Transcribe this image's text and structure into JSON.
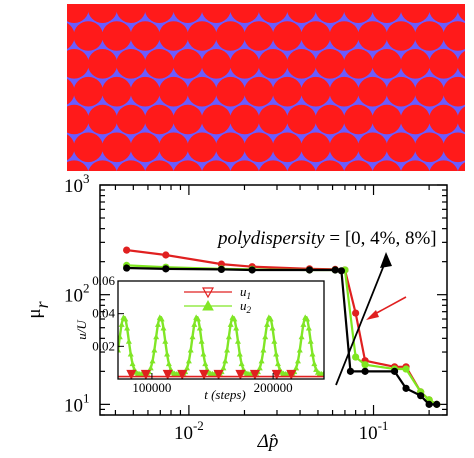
{
  "colors": {
    "particle": "#ff1a1a",
    "background_fluid": "#6a5cff",
    "series_0": "#000000",
    "series_4": "#7fe620",
    "series_8": "#e02020",
    "arrow_red": "#e02020",
    "inset_u1": "#e02020",
    "inset_u2": "#80e626"
  },
  "particles": {
    "rows": 6,
    "per_row": 14
  },
  "annotation": {
    "prefix": "polydispersity",
    "suffix": " = [0, 4%, 8%]"
  },
  "chart_data": [
    {
      "type": "line",
      "xlabel": "Δp̂",
      "ylabel": "μ",
      "ylabel_sub": "r",
      "xscale": "log",
      "yscale": "log",
      "xlim": [
        0.0033,
        0.25
      ],
      "ylim": [
        8,
        1000
      ],
      "x_ticks": [
        0.01,
        0.1
      ],
      "x_tick_labels": [
        "10",
        "10"
      ],
      "x_tick_exps": [
        "-2",
        "-1"
      ],
      "y_ticks": [
        10,
        100,
        1000
      ],
      "y_tick_labels": [
        "10",
        "10",
        "10"
      ],
      "y_tick_exps": [
        "1",
        "2",
        "3"
      ],
      "series": [
        {
          "color_key": "series_8",
          "x": [
            0.0046,
            0.0075,
            0.015,
            0.022,
            0.045,
            0.062,
            0.07,
            0.08,
            0.09,
            0.13,
            0.15,
            0.18,
            0.2,
            0.22
          ],
          "y": [
            255,
            230,
            190,
            180,
            172,
            170,
            168,
            68,
            25,
            22,
            22,
            13,
            11,
            10
          ]
        },
        {
          "color_key": "series_4",
          "x": [
            0.0046,
            0.0075,
            0.015,
            0.022,
            0.045,
            0.062,
            0.07,
            0.08,
            0.09,
            0.13,
            0.15,
            0.18,
            0.2,
            0.22
          ],
          "y": [
            185,
            178,
            172,
            170,
            168,
            168,
            168,
            27,
            23,
            21,
            21,
            13,
            11,
            10
          ]
        },
        {
          "color_key": "series_0",
          "x": [
            0.0046,
            0.0075,
            0.015,
            0.022,
            0.045,
            0.062,
            0.067,
            0.075,
            0.09,
            0.13,
            0.15,
            0.18,
            0.2,
            0.22
          ],
          "y": [
            175,
            172,
            170,
            168,
            168,
            168,
            165,
            20,
            20,
            20,
            14,
            12,
            10,
            10
          ]
        }
      ]
    },
    {
      "type": "line",
      "xlabel": "t (steps)",
      "ylabel": "u/U",
      "xlim": [
        72000,
        242000
      ],
      "ylim": [
        0,
        0.06
      ],
      "x_ticks": [
        100000,
        200000
      ],
      "x_tick_labels": [
        "100000",
        "200000"
      ],
      "y_ticks": [
        0.02,
        0.04,
        0.06
      ],
      "y_tick_labels": [
        "0.02",
        "0.04",
        "0.06"
      ],
      "legend": [
        "u",
        "u"
      ],
      "legend_subs": [
        "1",
        "2"
      ],
      "legend_placement": "top-center",
      "series": [
        {
          "name": "u1",
          "color_key": "inset_u1",
          "marker": "triangle-down",
          "period": 30000,
          "x_start": 77000,
          "baseline": 0.0015,
          "peak": 0.0025,
          "marker_x": [
            83000,
            95000,
            113000,
            125000,
            143000,
            155000,
            173000,
            185000,
            203000,
            215000
          ]
        },
        {
          "name": "u2",
          "color_key": "inset_u2",
          "marker": "triangle-up",
          "period": 30000,
          "x_start": 77000,
          "baseline": 0.003,
          "peak": 0.038,
          "peak_x": [
            77000,
            107000,
            137000,
            167000,
            197000,
            227000
          ]
        }
      ]
    }
  ]
}
